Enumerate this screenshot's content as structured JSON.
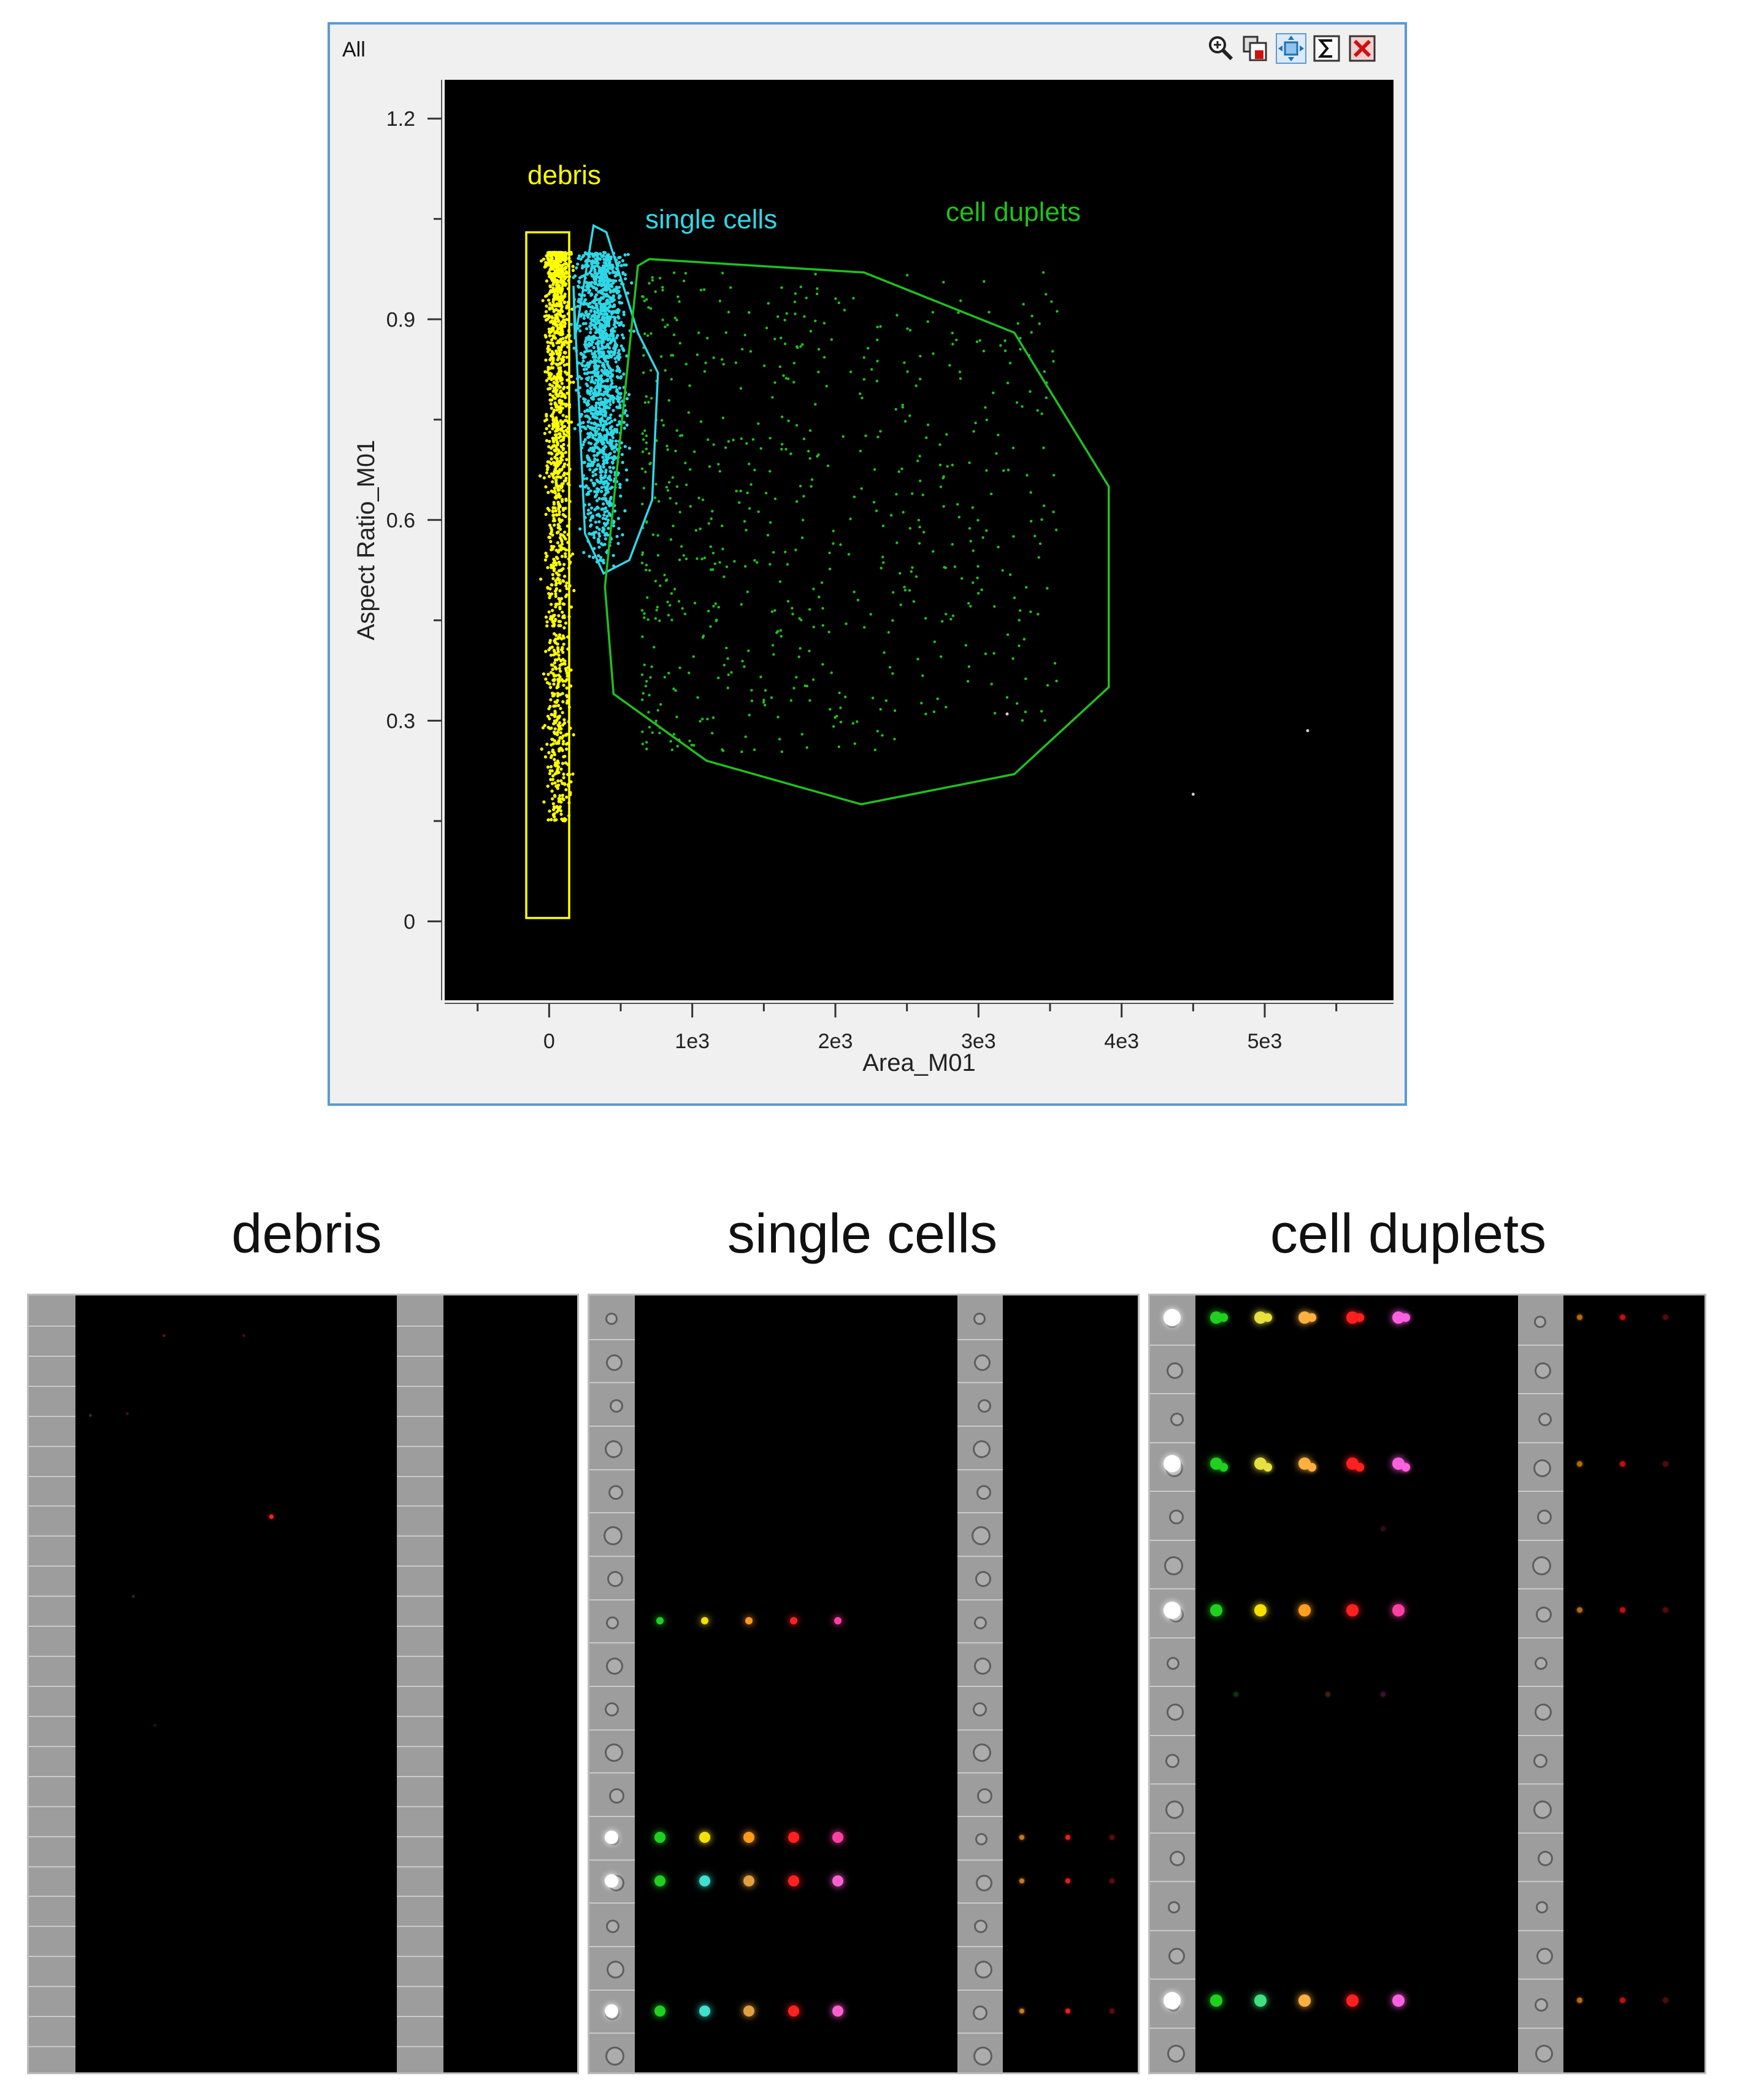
{
  "window": {
    "title": "All",
    "toolbar": [
      "zoom-in-icon",
      "copy-plot-icon",
      "fit-view-icon",
      "statistics-sigma-icon",
      "close-icon"
    ]
  },
  "chart_data": {
    "type": "scatter",
    "xlabel": "Area_M01",
    "ylabel": "Aspect Ratio_M01",
    "xlim": [
      -730,
      5900
    ],
    "ylim": [
      -0.118,
      1.258
    ],
    "x_ticks": [
      "0",
      "1e3",
      "2e3",
      "3e3",
      "4e3",
      "5e3"
    ],
    "x_tick_values": [
      0,
      1000,
      2000,
      3000,
      4000,
      5000
    ],
    "y_ticks": [
      "0",
      "0.3",
      "0.6",
      "0.9",
      "1.2"
    ],
    "y_tick_values": [
      0,
      0.3,
      0.6,
      0.9,
      1.2
    ],
    "background": "#000000",
    "gates": [
      {
        "name": "debris",
        "color": "#ffff00",
        "shape": "rectangle",
        "x": [
          -160,
          140
        ],
        "y": [
          0.005,
          1.03
        ]
      },
      {
        "name": "single cells",
        "color": "#2fd7e6",
        "shape": "polygon",
        "x": [
          180,
          310,
          400,
          620,
          760,
          720,
          560,
          380,
          250,
          170
        ],
        "y": [
          0.87,
          1.04,
          1.03,
          0.88,
          0.82,
          0.63,
          0.54,
          0.52,
          0.58,
          0.95
        ]
      },
      {
        "name": "cell duplets",
        "color": "#20c020",
        "shape": "polygon",
        "x": [
          620,
          700,
          2200,
          3250,
          3910,
          3910,
          3250,
          2180,
          1100,
          450,
          390,
          620
        ],
        "y": [
          0.98,
          0.99,
          0.97,
          0.88,
          0.65,
          0.35,
          0.22,
          0.175,
          0.24,
          0.34,
          0.5,
          0.98
        ]
      }
    ],
    "series": [
      {
        "name": "debris",
        "color": "#ffff00",
        "x_center": 60,
        "x_spread": 60,
        "y_range": [
          0.15,
          1.0
        ]
      },
      {
        "name": "single cells",
        "color": "#2fd7e6",
        "x_center": 370,
        "x_spread": 120,
        "y_range": [
          0.53,
          1.0
        ]
      },
      {
        "name": "cell duplets",
        "color": "#20c020",
        "x_center": 1400,
        "x_spread": 900,
        "y_range": [
          0.2,
          0.98
        ]
      }
    ]
  },
  "sections": [
    {
      "title": "debris"
    },
    {
      "title": "single cells"
    },
    {
      "title": "cell duplets"
    }
  ],
  "event_rows": {
    "single_cells": [
      {
        "row": 7,
        "colors": [
          "#20d020",
          "#f5e000",
          "#ff9a1a",
          "#ff2020",
          "#ff40a0"
        ]
      },
      {
        "row": 12,
        "colors": [
          "#20d020",
          "#f5e000",
          "#ff9a1a",
          "#ff2020",
          "#ff40a0"
        ]
      },
      {
        "row": 13,
        "colors": [
          "#20d020",
          "#40e0d0",
          "#e0a040",
          "#ff2020",
          "#ff60d0"
        ]
      },
      {
        "row": 16,
        "colors": [
          "#20d020",
          "#40e0d0",
          "#e0a040",
          "#ff2020",
          "#ff60d0"
        ]
      }
    ],
    "cell_duplets": [
      {
        "row": 0,
        "colors": [
          "#20d020",
          "#e6e040",
          "#ffb040",
          "#ff2020",
          "#ff60e0"
        ]
      },
      {
        "row": 3,
        "colors": [
          "#20d020",
          "#e6e040",
          "#ffb040",
          "#ff2020",
          "#ff60e0"
        ]
      },
      {
        "row": 6,
        "colors": [
          "#20d020",
          "#f5e000",
          "#ffa020",
          "#ff2020",
          "#ff40a0"
        ]
      },
      {
        "row": 14,
        "colors": [
          "#20d020",
          "#40e080",
          "#ffb040",
          "#ff2020",
          "#ff60e0"
        ]
      }
    ]
  }
}
